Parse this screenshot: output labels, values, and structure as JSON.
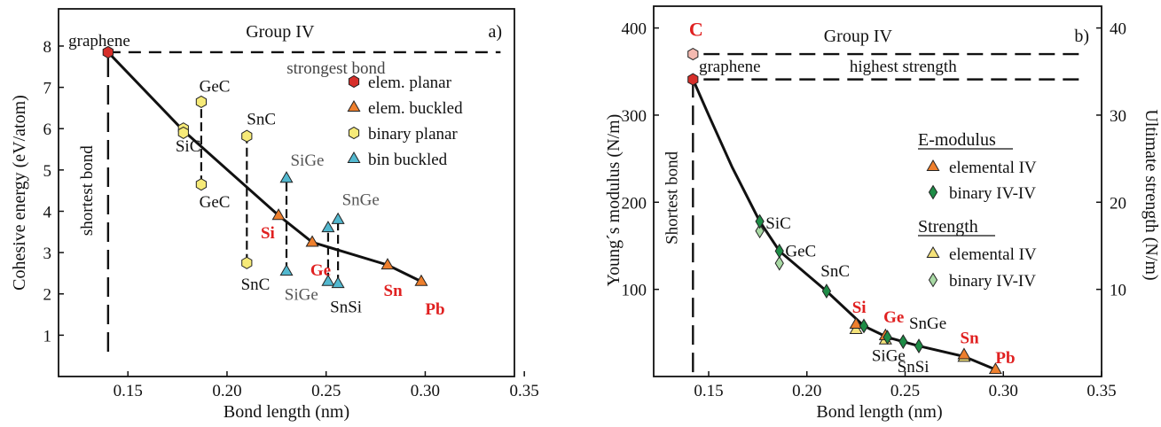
{
  "colors": {
    "elem_planar": "#d62f2a",
    "elem_buckled": "#ee7f2d",
    "binary_planar": "#f6ea78",
    "bin_buckled": "#52b8cf",
    "binary_emod": "#1e8c46",
    "elem_strength": "#f4e27a",
    "binary_strength": "#a8d9a4",
    "strength_c": "#f3b9b0",
    "red_label": "#e02020",
    "gray_label": "#555555",
    "axis": "#111111"
  },
  "chart_data": [
    {
      "type": "scatter",
      "panel": "a)",
      "group_label": "Group IV",
      "xlabel": "Bond length (nm)",
      "ylabel": "Cohesive energy (eV/atom)",
      "xlim": [
        0.115,
        0.345
      ],
      "ylim": [
        0,
        8.9
      ],
      "xticks": [
        "0.15",
        "0.20",
        "0.25",
        "0.30",
        "0.35"
      ],
      "yticks": [
        "1",
        "2",
        "3",
        "4",
        "5",
        "6",
        "7",
        "8"
      ],
      "legend_position": "top-right",
      "legend": [
        "elem. planar",
        "elem. buckled",
        "binary planar",
        "bin buckled"
      ],
      "series": [
        {
          "name": "elem. planar",
          "marker": "hexagon",
          "points": [
            {
              "x": 0.14,
              "y": 7.85
            }
          ]
        },
        {
          "name": "elem. buckled",
          "marker": "triangle",
          "points": [
            {
              "x": 0.226,
              "y": 3.9
            },
            {
              "x": 0.243,
              "y": 3.25
            },
            {
              "x": 0.281,
              "y": 2.7
            },
            {
              "x": 0.298,
              "y": 2.3
            }
          ]
        },
        {
          "name": "binary planar",
          "marker": "hexagon",
          "points": [
            {
              "x": 0.178,
              "y": 6.0
            },
            {
              "x": 0.178,
              "y": 5.9
            },
            {
              "x": 0.187,
              "y": 6.65
            },
            {
              "x": 0.187,
              "y": 4.65
            },
            {
              "x": 0.21,
              "y": 5.82
            },
            {
              "x": 0.21,
              "y": 2.75
            }
          ]
        },
        {
          "name": "bin buckled",
          "marker": "triangle",
          "points": [
            {
              "x": 0.23,
              "y": 4.8
            },
            {
              "x": 0.23,
              "y": 2.55
            },
            {
              "x": 0.251,
              "y": 3.6
            },
            {
              "x": 0.251,
              "y": 2.3
            },
            {
              "x": 0.256,
              "y": 3.8
            },
            {
              "x": 0.256,
              "y": 2.25
            }
          ]
        }
      ],
      "trend_line": [
        {
          "x": 0.14,
          "y": 7.85
        },
        {
          "x": 0.178,
          "y": 5.95
        },
        {
          "x": 0.226,
          "y": 3.9
        },
        {
          "x": 0.243,
          "y": 3.25
        },
        {
          "x": 0.281,
          "y": 2.7
        },
        {
          "x": 0.298,
          "y": 2.3
        }
      ],
      "reference_lines": [
        {
          "orientation": "horizontal",
          "value": 7.85,
          "from": 0.14,
          "to": 0.338,
          "label": "strongest bond"
        },
        {
          "orientation": "vertical",
          "value": 0.14,
          "from": 0.6,
          "to": 7.85,
          "label": "shortest bond"
        }
      ],
      "connectors": [
        {
          "x": 0.187,
          "y1": 4.65,
          "y2": 6.65
        },
        {
          "x": 0.21,
          "y1": 2.75,
          "y2": 5.82
        },
        {
          "x": 0.23,
          "y1": 2.55,
          "y2": 4.8
        },
        {
          "x": 0.251,
          "y1": 2.3,
          "y2": 3.6
        },
        {
          "x": 0.256,
          "y1": 2.25,
          "y2": 3.8
        }
      ],
      "annotations": [
        {
          "text": "graphene",
          "x": 0.12,
          "y": 8.0,
          "style": "black"
        },
        {
          "text": "GeC",
          "x": 0.186,
          "y": 6.9,
          "style": "black"
        },
        {
          "text": "SiC",
          "x": 0.174,
          "y": 5.45,
          "style": "black"
        },
        {
          "text": "GeC",
          "x": 0.186,
          "y": 4.1,
          "style": "black"
        },
        {
          "text": "SnC",
          "x": 0.21,
          "y": 6.1,
          "style": "black"
        },
        {
          "text": "SnC",
          "x": 0.207,
          "y": 2.1,
          "style": "black"
        },
        {
          "text": "SiGe",
          "x": 0.232,
          "y": 5.1,
          "style": "gray"
        },
        {
          "text": "SiGe",
          "x": 0.229,
          "y": 1.85,
          "style": "gray"
        },
        {
          "text": "SnGe",
          "x": 0.258,
          "y": 4.15,
          "style": "gray"
        },
        {
          "text": "SnSi",
          "x": 0.252,
          "y": 1.55,
          "style": "black"
        },
        {
          "text": "Si",
          "x": 0.217,
          "y": 3.35,
          "style": "red"
        },
        {
          "text": "Ge",
          "x": 0.242,
          "y": 2.45,
          "style": "red"
        },
        {
          "text": "Sn",
          "x": 0.279,
          "y": 1.95,
          "style": "red"
        },
        {
          "text": "Pb",
          "x": 0.3,
          "y": 1.5,
          "style": "red"
        }
      ]
    },
    {
      "type": "scatter",
      "panel": "b)",
      "group_label": "Group IV",
      "xlabel": "Bond length (nm)",
      "ylabel": "Young´s modulus (N/m)",
      "y2label": "Ultimate strength (N/m)",
      "xlim": [
        0.122,
        0.35
      ],
      "ylim": [
        0,
        425
      ],
      "y2lim": [
        0,
        42.5
      ],
      "xticks": [
        "0.15",
        "0.20",
        "0.25",
        "0.30",
        "0.35"
      ],
      "yticks": [
        "100",
        "200",
        "300",
        "400"
      ],
      "y2ticks": [
        "10",
        "20",
        "30",
        "40"
      ],
      "legend_position": "right",
      "legend_groups": [
        {
          "title": "E-modulus",
          "items": [
            "elemental IV",
            "binary IV-IV"
          ]
        },
        {
          "title": "Strength",
          "items": [
            "elemental IV",
            "binary IV-IV"
          ]
        }
      ],
      "series": [
        {
          "name": "E-modulus elemental IV",
          "marker": "triangle",
          "points": [
            {
              "x": 0.225,
              "y": 60
            },
            {
              "x": 0.24,
              "y": 47
            },
            {
              "x": 0.28,
              "y": 25
            },
            {
              "x": 0.296,
              "y": 8
            }
          ]
        },
        {
          "name": "E-modulus binary IV-IV",
          "marker": "diamond",
          "points": [
            {
              "x": 0.176,
              "y": 178
            },
            {
              "x": 0.186,
              "y": 144
            },
            {
              "x": 0.21,
              "y": 98
            },
            {
              "x": 0.229,
              "y": 58
            },
            {
              "x": 0.241,
              "y": 45
            },
            {
              "x": 0.249,
              "y": 40
            },
            {
              "x": 0.257,
              "y": 35
            }
          ]
        },
        {
          "name": "Strength elemental IV",
          "marker": "triangle",
          "points": [
            {
              "x": 0.225,
              "y": 5.4
            },
            {
              "x": 0.24,
              "y": 4.2
            },
            {
              "x": 0.28,
              "y": 2.2
            }
          ]
        },
        {
          "name": "Strength binary IV-IV",
          "marker": "diamond",
          "points": [
            {
              "x": 0.176,
              "y": 16.7
            },
            {
              "x": 0.186,
              "y": 13.0
            }
          ]
        },
        {
          "name": "graphene modulus",
          "marker": "hexagon",
          "points": [
            {
              "x": 0.142,
              "y": 341
            }
          ]
        },
        {
          "name": "graphene strength",
          "marker": "hexagon",
          "points": [
            {
              "x": 0.142,
              "y": 37.0
            }
          ]
        }
      ],
      "trend_line": [
        {
          "x": 0.142,
          "y": 341
        },
        {
          "x": 0.15,
          "y": 300
        },
        {
          "x": 0.162,
          "y": 240
        },
        {
          "x": 0.176,
          "y": 178
        },
        {
          "x": 0.186,
          "y": 144
        },
        {
          "x": 0.21,
          "y": 98
        },
        {
          "x": 0.229,
          "y": 58
        },
        {
          "x": 0.241,
          "y": 45
        },
        {
          "x": 0.257,
          "y": 35
        },
        {
          "x": 0.28,
          "y": 23
        },
        {
          "x": 0.296,
          "y": 8
        }
      ],
      "reference_lines": [
        {
          "orientation": "horizontal",
          "value": 370,
          "from": 0.142,
          "to": 0.34,
          "label": "highest strength"
        },
        {
          "orientation": "horizontal",
          "value": 341,
          "from": 0.142,
          "to": 0.34,
          "label": ""
        },
        {
          "orientation": "vertical",
          "value": 0.142,
          "from": 5,
          "to": 341,
          "label": "Shortest bond"
        }
      ],
      "annotations": [
        {
          "text": "C",
          "x": 0.14,
          "y": 391,
          "style": "red"
        },
        {
          "text": "graphene",
          "x": 0.145,
          "y": 350,
          "style": "black"
        },
        {
          "text": "SiC",
          "x": 0.179,
          "y": 170,
          "style": "black"
        },
        {
          "text": "GeC",
          "x": 0.189,
          "y": 138,
          "style": "black"
        },
        {
          "text": "SnC",
          "x": 0.207,
          "y": 115,
          "style": "black"
        },
        {
          "text": "Si",
          "x": 0.223,
          "y": 73,
          "style": "red"
        },
        {
          "text": "Ge",
          "x": 0.239,
          "y": 62,
          "style": "red"
        },
        {
          "text": "SnGe",
          "x": 0.252,
          "y": 55,
          "style": "black"
        },
        {
          "text": "SiGe",
          "x": 0.233,
          "y": 18,
          "style": "black"
        },
        {
          "text": "SnSi",
          "x": 0.246,
          "y": 5,
          "style": "black"
        },
        {
          "text": "Sn",
          "x": 0.278,
          "y": 38,
          "style": "red"
        },
        {
          "text": "Pb",
          "x": 0.296,
          "y": 15,
          "style": "red"
        }
      ]
    }
  ]
}
